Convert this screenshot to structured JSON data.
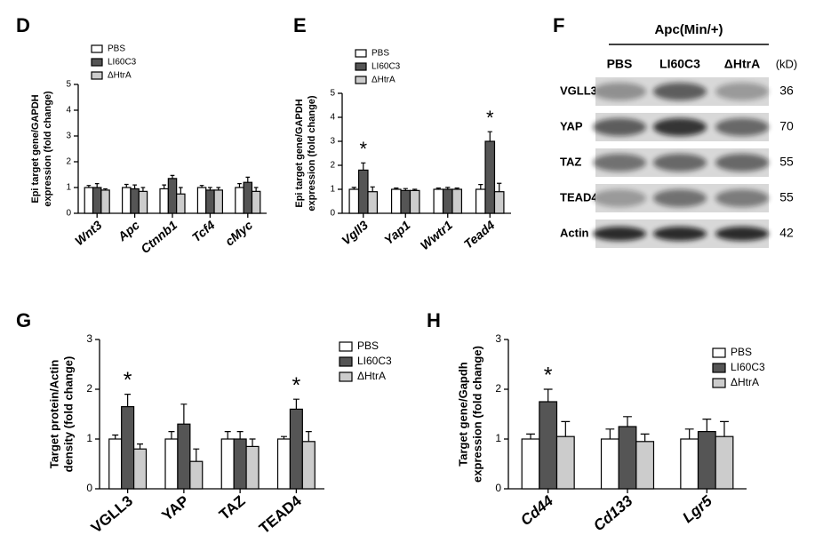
{
  "chart_data": [
    {
      "type": "bar",
      "panel": "D",
      "ylabel": [
        "Epi target gene/GAPDH",
        "expression (fold change)"
      ],
      "categories": [
        "Wnt3",
        "Apc",
        "Ctnnb1",
        "Tcf4",
        "cMyc"
      ],
      "ylim": [
        0,
        5
      ],
      "yticks": [
        0,
        1,
        2,
        3,
        4,
        5
      ],
      "series": [
        {
          "name": "PBS",
          "color": "#ffffff",
          "values": [
            1.0,
            1.0,
            0.95,
            1.0,
            1.0
          ],
          "errors": [
            0.08,
            0.12,
            0.15,
            0.08,
            0.15
          ]
        },
        {
          "name": "LI60C3",
          "color": "#555555",
          "values": [
            1.0,
            0.95,
            1.35,
            0.9,
            1.2
          ],
          "errors": [
            0.15,
            0.15,
            0.12,
            0.1,
            0.2
          ]
        },
        {
          "name": "ΔHtrA",
          "color": "#cccccc",
          "values": [
            0.9,
            0.85,
            0.75,
            0.9,
            0.85
          ],
          "errors": [
            0.05,
            0.15,
            0.25,
            0.1,
            0.15
          ]
        }
      ]
    },
    {
      "type": "bar",
      "panel": "E",
      "ylabel": [
        "Epi target gene/GAPDH",
        "expression (fold change)"
      ],
      "categories": [
        "Vgll3",
        "Yap1",
        "Wwtr1",
        "Tead4"
      ],
      "ylim": [
        0,
        5
      ],
      "yticks": [
        0,
        1,
        2,
        3,
        4,
        5
      ],
      "series": [
        {
          "name": "PBS",
          "color": "#ffffff",
          "values": [
            1.0,
            1.0,
            1.0,
            1.0
          ],
          "errors": [
            0.08,
            0.05,
            0.05,
            0.2
          ]
        },
        {
          "name": "LI60C3",
          "color": "#555555",
          "values": [
            1.8,
            0.95,
            1.0,
            3.0
          ],
          "errors": [
            0.3,
            0.08,
            0.08,
            0.4
          ],
          "marks": [
            "*",
            null,
            null,
            "*"
          ]
        },
        {
          "name": "ΔHtrA",
          "color": "#cccccc",
          "values": [
            0.9,
            0.95,
            1.0,
            0.9
          ],
          "errors": [
            0.2,
            0.05,
            0.05,
            0.35
          ]
        }
      ]
    },
    {
      "type": "bar",
      "panel": "G",
      "ylabel": [
        "Target protein/Actin",
        "density (fold change)"
      ],
      "categories": [
        "VGLL3",
        "YAP",
        "TAZ",
        "TEAD4"
      ],
      "ylim": [
        0,
        3
      ],
      "yticks": [
        0,
        1,
        2,
        3
      ],
      "series": [
        {
          "name": "PBS",
          "color": "#ffffff",
          "values": [
            1.0,
            1.0,
            1.0,
            1.0
          ],
          "errors": [
            0.08,
            0.15,
            0.15,
            0.05
          ]
        },
        {
          "name": "LI60C3",
          "color": "#555555",
          "values": [
            1.65,
            1.3,
            1.0,
            1.6
          ],
          "errors": [
            0.25,
            0.4,
            0.15,
            0.2
          ],
          "marks": [
            "*",
            null,
            null,
            "*"
          ]
        },
        {
          "name": "ΔHtrA",
          "color": "#cccccc",
          "values": [
            0.8,
            0.55,
            0.85,
            0.95
          ],
          "errors": [
            0.1,
            0.25,
            0.15,
            0.2
          ]
        }
      ]
    },
    {
      "type": "bar",
      "panel": "H",
      "ylabel": [
        "Target gene/Gapdh",
        "expression (fold change)"
      ],
      "categories": [
        "Cd44",
        "Cd133",
        "Lgr5"
      ],
      "ylim": [
        0,
        3
      ],
      "yticks": [
        0,
        1,
        2,
        3
      ],
      "series": [
        {
          "name": "PBS",
          "color": "#ffffff",
          "values": [
            1.0,
            1.0,
            1.0
          ],
          "errors": [
            0.1,
            0.2,
            0.2
          ]
        },
        {
          "name": "LI60C3",
          "color": "#555555",
          "values": [
            1.75,
            1.25,
            1.15
          ],
          "errors": [
            0.25,
            0.2,
            0.25
          ],
          "marks": [
            "*",
            null,
            null
          ]
        },
        {
          "name": "ΔHtrA",
          "color": "#cccccc",
          "values": [
            1.05,
            0.95,
            1.05
          ],
          "errors": [
            0.3,
            0.15,
            0.3
          ]
        }
      ]
    }
  ],
  "blot": {
    "panel": "F",
    "title": "Apc(Min/+)",
    "columns": [
      "PBS",
      "LI60C3",
      "ΔHtrA"
    ],
    "unit": "(kD)",
    "rows": [
      {
        "label": "VGLL3",
        "kd": "36"
      },
      {
        "label": "YAP",
        "kd": "70"
      },
      {
        "label": "TAZ",
        "kd": "55"
      },
      {
        "label": "TEAD4",
        "kd": "55"
      },
      {
        "label": "Actin",
        "kd": "42"
      }
    ]
  }
}
